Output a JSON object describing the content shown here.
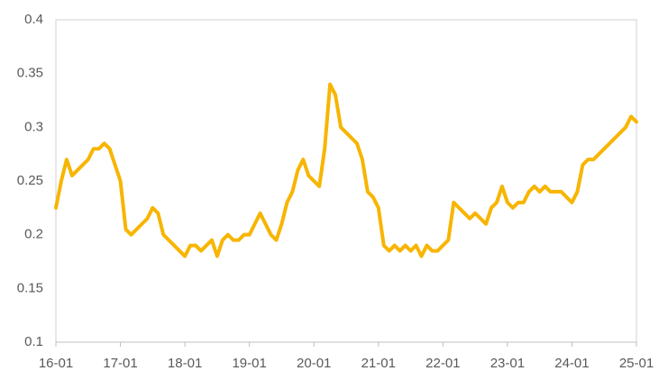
{
  "chart_data": {
    "type": "line",
    "x": [
      "16-01",
      "16-02",
      "16-03",
      "16-04",
      "16-05",
      "16-06",
      "16-07",
      "16-08",
      "16-09",
      "16-10",
      "16-11",
      "16-12",
      "17-01",
      "17-02",
      "17-03",
      "17-04",
      "17-05",
      "17-06",
      "17-07",
      "17-08",
      "17-09",
      "17-10",
      "17-11",
      "17-12",
      "18-01",
      "18-02",
      "18-03",
      "18-04",
      "18-05",
      "18-06",
      "18-07",
      "18-08",
      "18-09",
      "18-10",
      "18-11",
      "18-12",
      "19-01",
      "19-02",
      "19-03",
      "19-04",
      "19-05",
      "19-06",
      "19-07",
      "19-08",
      "19-09",
      "19-10",
      "19-11",
      "19-12",
      "20-01",
      "20-02",
      "20-03",
      "20-04",
      "20-05",
      "20-06",
      "20-07",
      "20-08",
      "20-09",
      "20-10",
      "20-11",
      "20-12",
      "21-01",
      "21-02",
      "21-03",
      "21-04",
      "21-05",
      "21-06",
      "21-07",
      "21-08",
      "21-09",
      "21-10",
      "21-11",
      "21-12",
      "22-01",
      "22-02",
      "22-03",
      "22-04",
      "22-05",
      "22-06",
      "22-07",
      "22-08",
      "22-09",
      "22-10",
      "22-11",
      "22-12",
      "23-01",
      "23-02",
      "23-03",
      "23-04",
      "23-05",
      "23-06",
      "23-07",
      "23-08",
      "23-09",
      "23-10",
      "23-11",
      "23-12",
      "24-01",
      "24-02",
      "24-03",
      "24-04",
      "24-05",
      "24-06",
      "24-07",
      "24-08",
      "24-09",
      "24-10",
      "24-11",
      "24-12",
      "25-01"
    ],
    "values": [
      0.225,
      0.25,
      0.27,
      0.255,
      0.26,
      0.265,
      0.27,
      0.28,
      0.28,
      0.285,
      0.28,
      0.265,
      0.25,
      0.205,
      0.2,
      0.205,
      0.21,
      0.215,
      0.225,
      0.22,
      0.2,
      0.195,
      0.19,
      0.185,
      0.18,
      0.19,
      0.19,
      0.185,
      0.19,
      0.195,
      0.18,
      0.195,
      0.2,
      0.195,
      0.195,
      0.2,
      0.2,
      0.21,
      0.22,
      0.21,
      0.2,
      0.195,
      0.21,
      0.23,
      0.24,
      0.26,
      0.27,
      0.255,
      0.25,
      0.245,
      0.28,
      0.34,
      0.33,
      0.3,
      0.295,
      0.29,
      0.285,
      0.27,
      0.24,
      0.235,
      0.225,
      0.19,
      0.185,
      0.19,
      0.185,
      0.19,
      0.185,
      0.19,
      0.18,
      0.19,
      0.185,
      0.185,
      0.19,
      0.195,
      0.23,
      0.225,
      0.22,
      0.215,
      0.22,
      0.215,
      0.21,
      0.225,
      0.23,
      0.245,
      0.23,
      0.225,
      0.23,
      0.23,
      0.24,
      0.245,
      0.24,
      0.245,
      0.24,
      0.24,
      0.24,
      0.235,
      0.23,
      0.24,
      0.265,
      0.27,
      0.27,
      0.275,
      0.28,
      0.285,
      0.29,
      0.295,
      0.3,
      0.31,
      0.305
    ],
    "color": "#f7b500",
    "xticks": [
      "16-01",
      "17-01",
      "18-01",
      "19-01",
      "20-01",
      "21-01",
      "22-01",
      "23-01",
      "24-01",
      "25-01"
    ],
    "ylim": [
      0.1,
      0.4
    ],
    "yticks": [
      0.1,
      0.15,
      0.2,
      0.25,
      0.3,
      0.35,
      0.4
    ],
    "grid": false
  }
}
